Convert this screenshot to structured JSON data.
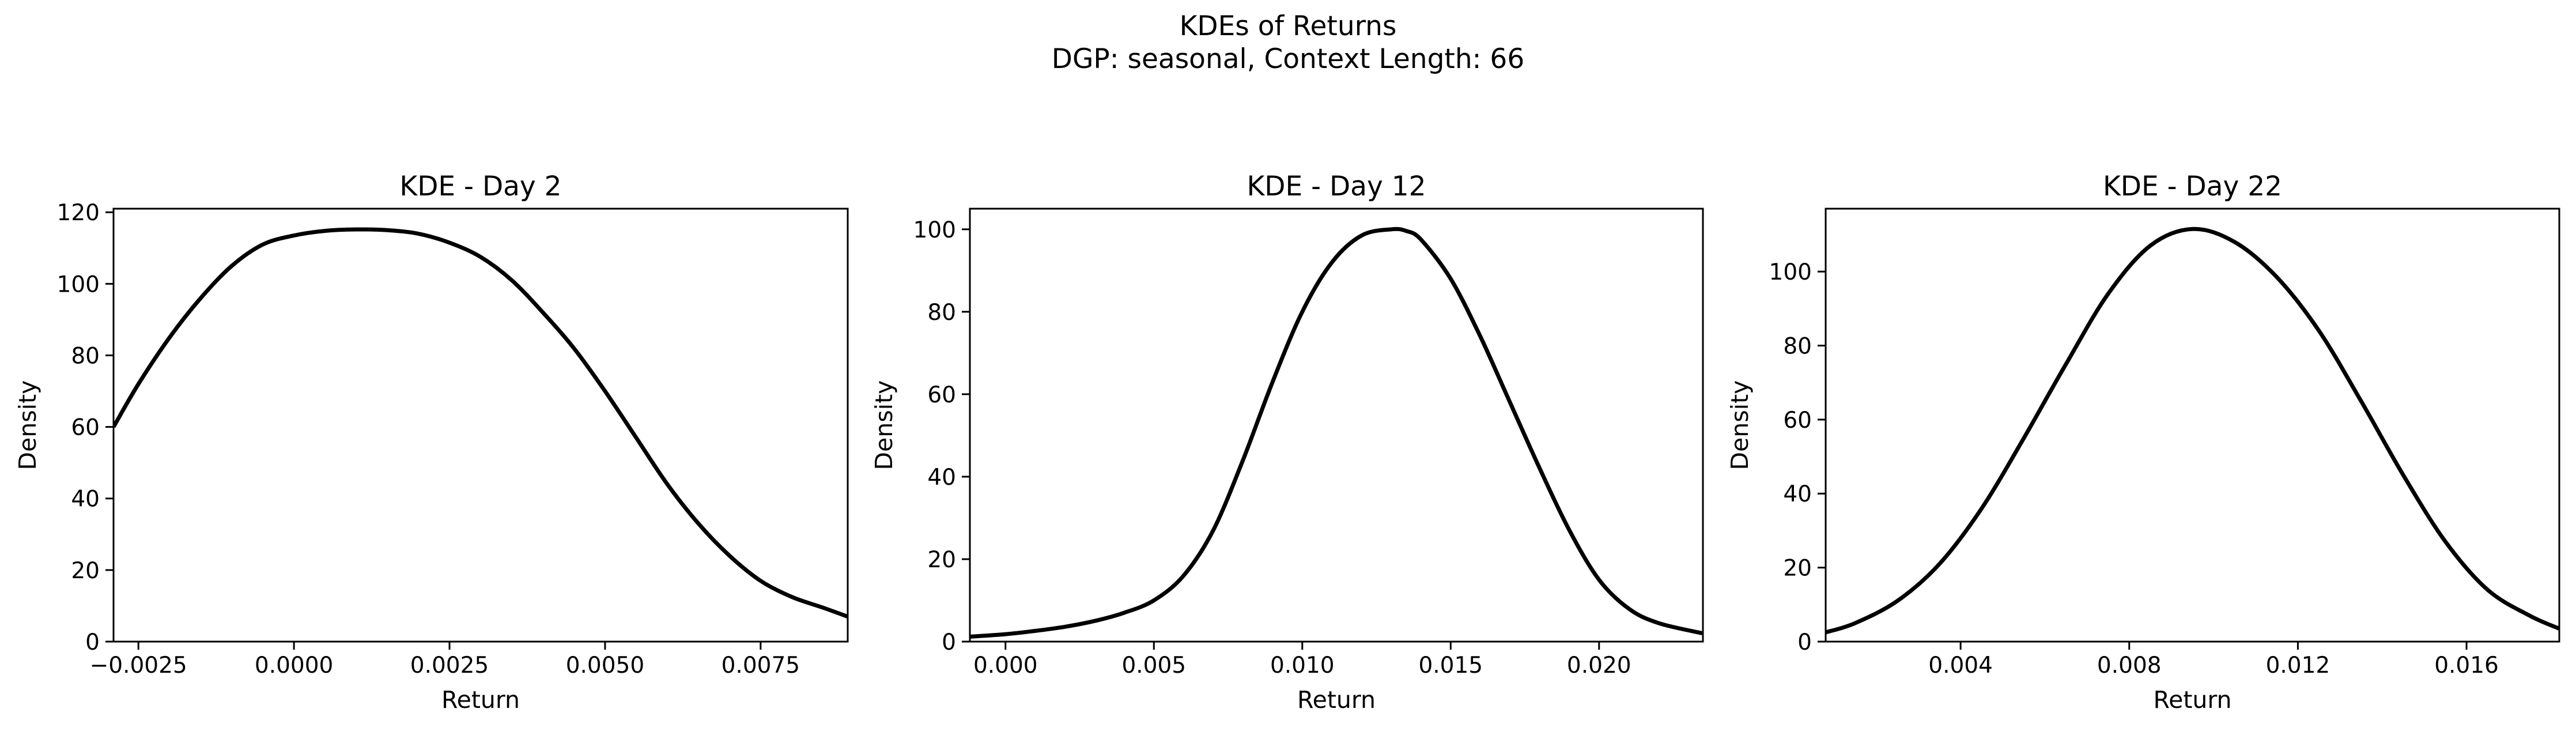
{
  "figure": {
    "suptitle_line1": "KDEs of Returns",
    "suptitle_line2": "DGP: seasonal, Context Length: 66"
  },
  "chart_data": [
    {
      "type": "line",
      "title": "KDE - Day 2",
      "xlabel": "Return",
      "ylabel": "Density",
      "xlim": [
        -0.0029,
        0.0089
      ],
      "ylim": [
        0,
        121
      ],
      "xticks": [
        -0.0025,
        0.0,
        0.0025,
        0.005,
        0.0075
      ],
      "xtick_labels": [
        "−0.0025",
        "0.0000",
        "0.0025",
        "0.0050",
        "0.0075"
      ],
      "yticks": [
        0,
        20,
        40,
        60,
        80,
        100,
        120
      ],
      "ytick_labels": [
        "0",
        "20",
        "40",
        "60",
        "80",
        "100",
        "120"
      ],
      "series": [
        {
          "name": "KDE",
          "color": "#000000",
          "x": [
            -0.0029,
            -0.0025,
            -0.002,
            -0.0015,
            -0.001,
            -0.0005,
            0.0,
            0.0005,
            0.001,
            0.0015,
            0.002,
            0.0025,
            0.003,
            0.0035,
            0.004,
            0.0045,
            0.005,
            0.0055,
            0.006,
            0.0065,
            0.007,
            0.0075,
            0.008,
            0.0085,
            0.0089
          ],
          "y": [
            60,
            72,
            85,
            96,
            105,
            111,
            113.5,
            114.8,
            115.2,
            115,
            114,
            111.5,
            107.5,
            101,
            92,
            82,
            70,
            57,
            44,
            33,
            24,
            17,
            12.5,
            9.5,
            7
          ]
        }
      ]
    },
    {
      "type": "line",
      "title": "KDE - Day 12",
      "xlabel": "Return",
      "ylabel": "Density",
      "xlim": [
        -0.0012,
        0.0235
      ],
      "ylim": [
        0,
        105
      ],
      "xticks": [
        0.0,
        0.005,
        0.01,
        0.015,
        0.02
      ],
      "xtick_labels": [
        "0.000",
        "0.005",
        "0.010",
        "0.015",
        "0.020"
      ],
      "yticks": [
        0,
        20,
        40,
        60,
        80,
        100
      ],
      "ytick_labels": [
        "0",
        "20",
        "40",
        "60",
        "80",
        "100"
      ],
      "series": [
        {
          "name": "KDE",
          "color": "#000000",
          "x": [
            -0.0012,
            0.0,
            0.001,
            0.002,
            0.003,
            0.004,
            0.005,
            0.006,
            0.007,
            0.008,
            0.009,
            0.01,
            0.011,
            0.012,
            0.013,
            0.0135,
            0.014,
            0.015,
            0.016,
            0.017,
            0.018,
            0.019,
            0.02,
            0.021,
            0.022,
            0.0235
          ],
          "y": [
            1.2,
            1.8,
            2.6,
            3.6,
            5,
            7,
            10,
            16,
            27,
            44,
            63,
            80,
            92,
            98.5,
            100,
            99.6,
            97.5,
            88,
            74,
            58,
            42,
            27,
            15,
            8,
            4.5,
            2
          ]
        }
      ]
    },
    {
      "type": "line",
      "title": "KDE - Day 22",
      "xlabel": "Return",
      "ylabel": "Density",
      "xlim": [
        0.0008,
        0.0182
      ],
      "ylim": [
        0,
        117
      ],
      "xticks": [
        0.004,
        0.008,
        0.012,
        0.016
      ],
      "xtick_labels": [
        "0.004",
        "0.008",
        "0.012",
        "0.016"
      ],
      "yticks": [
        0,
        20,
        40,
        60,
        80,
        100
      ],
      "ytick_labels": [
        "0",
        "20",
        "40",
        "60",
        "80",
        "100"
      ],
      "series": [
        {
          "name": "KDE",
          "color": "#000000",
          "x": [
            0.0008,
            0.0015,
            0.0025,
            0.0035,
            0.0045,
            0.0055,
            0.0065,
            0.0075,
            0.0085,
            0.0095,
            0.0105,
            0.0115,
            0.0125,
            0.0135,
            0.0145,
            0.0155,
            0.0165,
            0.0175,
            0.0182
          ],
          "y": [
            2.5,
            5,
            11,
            21,
            36,
            55,
            75,
            94,
            107,
            111.5,
            108,
            98.5,
            84,
            65,
            45,
            27,
            14,
            7,
            3.5
          ]
        }
      ]
    }
  ]
}
